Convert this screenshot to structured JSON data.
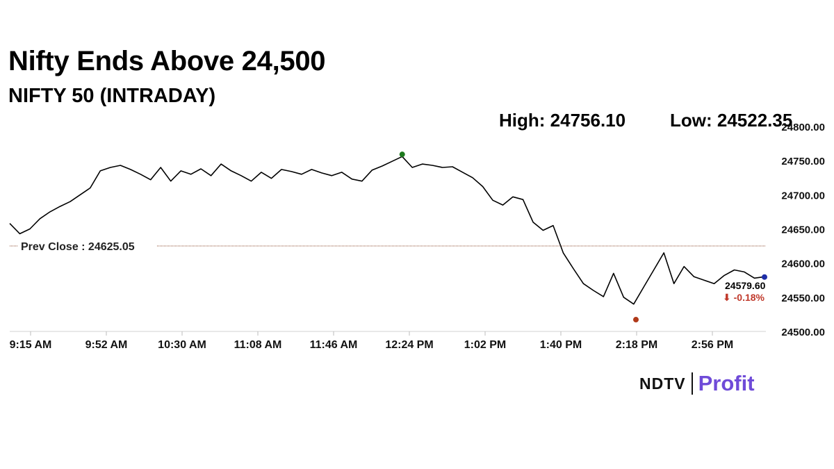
{
  "header": {
    "title": "Nifty Ends Above 24,500",
    "subtitle": "NIFTY 50 (INTRADAY)",
    "high_label": "High: 24756.10",
    "low_label": "Low: 24522.35"
  },
  "chart_data": {
    "type": "line",
    "title": "Nifty Ends Above 24,500",
    "subtitle": "NIFTY 50 (INTRADAY)",
    "xlabel": "",
    "ylabel": "",
    "x_ticks": [
      "9:15 AM",
      "9:52 AM",
      "10:30 AM",
      "11:08 AM",
      "11:46 AM",
      "12:24 PM",
      "1:02 PM",
      "1:40 PM",
      "2:18 PM",
      "2:56 PM"
    ],
    "y_ticks": [
      "24500.00",
      "24550.00",
      "24600.00",
      "24650.00",
      "24700.00",
      "24750.00",
      "24800.00"
    ],
    "ylim": [
      24500,
      24800
    ],
    "grid": false,
    "high": 24756.1,
    "low": 24522.35,
    "prev_close": 24625.05,
    "prev_close_label": "Prev Close : 24625.05",
    "last": 24579.6,
    "last_label": "24579.60",
    "change_label": "⬇ -0.18%",
    "series": [
      {
        "x": [
          "9:15 AM",
          "9:20 AM",
          "9:25 AM",
          "9:30 AM",
          "9:35 AM",
          "9:40 AM",
          "9:45 AM",
          "9:50 AM",
          "9:55 AM",
          "10:00 AM",
          "10:05 AM",
          "10:10 AM",
          "10:15 AM",
          "10:20 AM",
          "10:25 AM",
          "10:30 AM",
          "10:35 AM",
          "10:40 AM",
          "10:45 AM",
          "10:50 AM",
          "10:55 AM",
          "11:00 AM",
          "11:05 AM",
          "11:10 AM",
          "11:15 AM",
          "11:20 AM",
          "11:25 AM",
          "11:30 AM",
          "11:35 AM",
          "11:40 AM",
          "11:45 AM",
          "11:50 AM",
          "11:55 AM",
          "12:00 PM",
          "12:05 PM",
          "12:10 PM",
          "12:15 PM",
          "12:20 PM",
          "12:25 PM",
          "12:30 PM",
          "12:35 PM",
          "12:40 PM",
          "12:45 PM",
          "12:50 PM",
          "12:55 PM",
          "1:00 PM",
          "1:05 PM",
          "1:10 PM",
          "1:15 PM",
          "1:20 PM",
          "1:25 PM",
          "1:30 PM",
          "1:35 PM",
          "1:40 PM",
          "1:45 PM",
          "1:50 PM",
          "1:55 PM",
          "2:00 PM",
          "2:05 PM",
          "2:10 PM",
          "2:15 PM",
          "2:20 PM",
          "2:25 PM",
          "2:30 PM",
          "2:35 PM",
          "2:40 PM",
          "2:45 PM",
          "2:50 PM",
          "2:55 PM",
          "3:00 PM",
          "3:05 PM",
          "3:10 PM",
          "3:15 PM",
          "3:20 PM",
          "3:25 PM",
          "3:30 PM"
        ],
        "values": [
          24658,
          24643,
          24650,
          24665,
          24675,
          24683,
          24690,
          24700,
          24710,
          24735,
          24740,
          24743,
          24737,
          24730,
          24722,
          24740,
          24720,
          24735,
          24730,
          24738,
          24728,
          24745,
          24735,
          24728,
          24720,
          24733,
          24724,
          24737,
          24734,
          24730,
          24737,
          24732,
          24728,
          24733,
          24723,
          24720,
          24736,
          24742,
          24749,
          24756,
          24740,
          24745,
          24743,
          24740,
          24741,
          24733,
          24725,
          24712,
          24692,
          24685,
          24697,
          24693,
          24660,
          24648,
          24655,
          24615,
          24592,
          24570,
          24560,
          24551,
          24585,
          24550,
          24540,
          24565,
          24590,
          24615,
          24570,
          24595,
          24580,
          24575,
          24570,
          24582,
          24590,
          24587,
          24578,
          24580
        ]
      }
    ]
  }
}
